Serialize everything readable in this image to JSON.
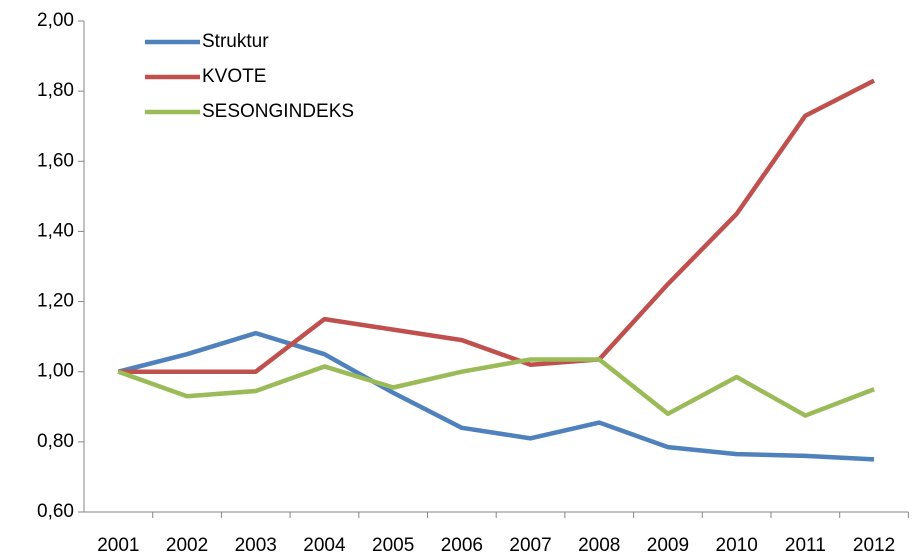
{
  "chart_data": {
    "type": "line",
    "categories": [
      "2001",
      "2002",
      "2003",
      "2004",
      "2005",
      "2006",
      "2007",
      "2008",
      "2009",
      "2010",
      "2011",
      "2012"
    ],
    "series": [
      {
        "name": "Struktur",
        "color": "#4f81bd",
        "values": [
          1.0,
          1.05,
          1.11,
          1.05,
          0.94,
          0.84,
          0.81,
          0.855,
          0.785,
          0.765,
          0.76,
          0.75
        ]
      },
      {
        "name": "KVOTE",
        "color": "#c0504d",
        "values": [
          1.0,
          1.0,
          1.0,
          1.15,
          1.12,
          1.09,
          1.02,
          1.035,
          1.25,
          1.45,
          1.73,
          1.83
        ]
      },
      {
        "name": "SESONGINDEKS",
        "color": "#9bbb59",
        "values": [
          1.0,
          0.93,
          0.945,
          1.015,
          0.955,
          1.0,
          1.035,
          1.035,
          0.88,
          0.985,
          0.875,
          0.95
        ]
      }
    ],
    "ylim": [
      0.6,
      2.0
    ],
    "yticks": [
      {
        "value": 0.6,
        "label": "0,60"
      },
      {
        "value": 0.8,
        "label": "0,80"
      },
      {
        "value": 1.0,
        "label": "1,00"
      },
      {
        "value": 1.2,
        "label": "1,20"
      },
      {
        "value": 1.4,
        "label": "1,40"
      },
      {
        "value": 1.6,
        "label": "1,60"
      },
      {
        "value": 1.8,
        "label": "1,80"
      },
      {
        "value": 2.0,
        "label": "2,00"
      }
    ],
    "grid": false,
    "legend": "top-left"
  }
}
